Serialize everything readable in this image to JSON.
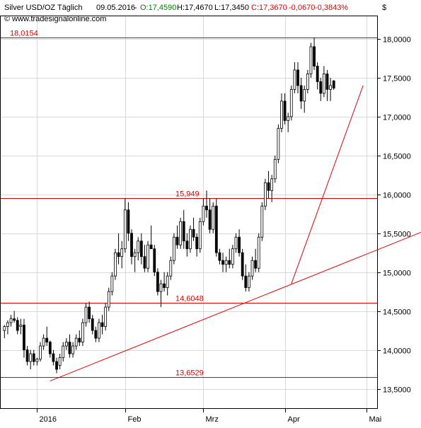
{
  "header": {
    "symbol": "Silver USD/OZ Täglich",
    "date": "09.05.2016",
    "open": "O:17,4590",
    "high": "H:17,4670",
    "low": "L:17,3450",
    "close": "C:17,3670",
    "change": "-0,0670",
    "change_pct": "-0,3843%",
    "currency": "$",
    "watermark": "© www.tradesignalonline.com"
  },
  "colors": {
    "background": "#ffffff",
    "up_candle": "#ffffff",
    "down_candle": "#000000",
    "lines": "#e00000",
    "grid": "#d9d9d9",
    "open_color": "#008000",
    "close_color": "#e00000"
  },
  "chart_data": {
    "type": "candlestick",
    "y_ticks": [
      "18,0000",
      "17,5000",
      "17,0000",
      "16,5000",
      "16,0000",
      "15,5000",
      "15,0000",
      "14,5000",
      "14,0000",
      "13,5000"
    ],
    "y_tick_values": [
      18.0,
      17.5,
      17.0,
      16.5,
      16.0,
      15.5,
      15.0,
      14.5,
      14.0,
      13.5
    ],
    "ylim": [
      13.25,
      18.3
    ],
    "x_ticks": [
      "2016",
      "Feb",
      "Mrz",
      "Apr",
      "Mai"
    ],
    "x_tick_bar_index": [
      10,
      37,
      61,
      86,
      111
    ],
    "horizontal_levels": [
      {
        "label": "18,0154",
        "value": 18.0154,
        "label_pos": "left"
      },
      {
        "label": "15,949",
        "value": 15.949,
        "label_pos": "center"
      },
      {
        "label": "14,6048",
        "value": 14.6048,
        "label_pos": "center"
      },
      {
        "label": "13,6529",
        "value": 13.6529,
        "label_pos": "center"
      }
    ],
    "trend_lines": [
      {
        "from": [
          14,
          13.6
        ],
        "to": [
          130,
          15.55
        ]
      },
      {
        "from": [
          88,
          14.85
        ],
        "to": [
          110,
          17.4
        ]
      }
    ],
    "candles": [
      [
        14.25,
        14.32,
        14.15,
        14.3
      ],
      [
        14.3,
        14.38,
        14.2,
        14.35
      ],
      [
        14.35,
        14.45,
        14.3,
        14.4
      ],
      [
        14.4,
        14.5,
        14.35,
        14.38
      ],
      [
        14.38,
        14.42,
        14.2,
        14.25
      ],
      [
        14.3,
        14.4,
        14.2,
        14.32
      ],
      [
        14.32,
        14.4,
        13.9,
        14.0
      ],
      [
        14.0,
        14.05,
        13.8,
        13.85
      ],
      [
        13.85,
        14.0,
        13.75,
        13.95
      ],
      [
        13.95,
        14.0,
        13.8,
        13.85
      ],
      [
        13.85,
        13.9,
        13.8,
        13.88
      ],
      [
        13.88,
        14.1,
        13.85,
        14.05
      ],
      [
        14.05,
        14.2,
        14.0,
        14.15
      ],
      [
        14.15,
        14.3,
        14.05,
        14.1
      ],
      [
        14.1,
        14.12,
        13.9,
        13.95
      ],
      [
        13.95,
        14.0,
        13.8,
        13.85
      ],
      [
        13.85,
        13.9,
        13.7,
        13.75
      ],
      [
        13.8,
        13.95,
        13.75,
        13.9
      ],
      [
        13.9,
        14.1,
        13.85,
        14.05
      ],
      [
        14.05,
        14.15,
        14.0,
        14.1
      ],
      [
        14.1,
        14.2,
        13.9,
        13.95
      ],
      [
        13.95,
        14.1,
        13.9,
        14.05
      ],
      [
        14.05,
        14.2,
        14.0,
        14.15
      ],
      [
        14.15,
        14.25,
        14.05,
        14.1
      ],
      [
        14.1,
        14.4,
        14.05,
        14.35
      ],
      [
        14.35,
        14.6,
        14.3,
        14.55
      ],
      [
        14.55,
        14.62,
        14.35,
        14.4
      ],
      [
        14.4,
        14.45,
        14.2,
        14.25
      ],
      [
        14.25,
        14.3,
        14.1,
        14.15
      ],
      [
        14.15,
        14.4,
        14.1,
        14.35
      ],
      [
        14.35,
        14.45,
        14.2,
        14.3
      ],
      [
        14.3,
        14.6,
        14.25,
        14.55
      ],
      [
        14.55,
        14.8,
        14.5,
        14.75
      ],
      [
        14.75,
        15.0,
        14.7,
        14.95
      ],
      [
        14.95,
        15.3,
        14.9,
        15.25
      ],
      [
        15.25,
        15.5,
        15.1,
        15.2
      ],
      [
        15.2,
        15.4,
        15.05,
        15.3
      ],
      [
        15.3,
        15.95,
        15.25,
        15.8
      ],
      [
        15.8,
        15.9,
        15.4,
        15.5
      ],
      [
        15.5,
        15.55,
        15.1,
        15.2
      ],
      [
        15.2,
        15.3,
        15.0,
        15.25
      ],
      [
        15.25,
        15.45,
        15.15,
        15.4
      ],
      [
        15.4,
        15.5,
        15.1,
        15.2
      ],
      [
        15.2,
        15.35,
        15.0,
        15.05
      ],
      [
        15.05,
        15.4,
        15.0,
        15.35
      ],
      [
        15.35,
        15.6,
        15.3,
        15.3
      ],
      [
        15.3,
        15.35,
        14.95,
        15.0
      ],
      [
        15.0,
        15.05,
        14.7,
        14.75
      ],
      [
        14.75,
        14.9,
        14.55,
        14.85
      ],
      [
        14.85,
        15.0,
        14.75,
        14.8
      ],
      [
        14.8,
        15.0,
        14.7,
        14.95
      ],
      [
        14.95,
        15.2,
        14.9,
        15.15
      ],
      [
        15.15,
        15.5,
        15.1,
        15.45
      ],
      [
        15.45,
        15.6,
        15.3,
        15.35
      ],
      [
        15.35,
        15.7,
        15.3,
        15.65
      ],
      [
        15.65,
        15.8,
        15.3,
        15.4
      ],
      [
        15.4,
        15.5,
        15.2,
        15.3
      ],
      [
        15.3,
        15.6,
        15.25,
        15.55
      ],
      [
        15.55,
        15.7,
        15.4,
        15.45
      ],
      [
        15.45,
        15.5,
        15.2,
        15.3
      ],
      [
        15.3,
        15.7,
        15.25,
        15.65
      ],
      [
        15.65,
        15.95,
        15.6,
        15.85
      ],
      [
        15.85,
        16.05,
        15.7,
        15.8
      ],
      [
        15.8,
        15.95,
        15.5,
        15.55
      ],
      [
        15.55,
        15.9,
        15.5,
        15.85
      ],
      [
        15.85,
        15.95,
        15.2,
        15.25
      ],
      [
        15.25,
        15.3,
        15.1,
        15.15
      ],
      [
        15.15,
        15.25,
        15.0,
        15.1
      ],
      [
        15.1,
        15.2,
        15.0,
        15.15
      ],
      [
        15.15,
        15.3,
        15.05,
        15.1
      ],
      [
        15.1,
        15.35,
        15.05,
        15.3
      ],
      [
        15.3,
        15.5,
        15.25,
        15.45
      ],
      [
        15.45,
        15.55,
        15.2,
        15.25
      ],
      [
        15.25,
        15.3,
        14.9,
        14.95
      ],
      [
        14.95,
        15.1,
        14.75,
        14.8
      ],
      [
        14.8,
        15.0,
        14.75,
        14.95
      ],
      [
        14.95,
        15.2,
        14.9,
        15.15
      ],
      [
        15.15,
        15.3,
        15.0,
        15.05
      ],
      [
        15.05,
        15.5,
        15.0,
        15.45
      ],
      [
        15.45,
        15.9,
        15.4,
        15.85
      ],
      [
        15.85,
        16.2,
        15.8,
        16.15
      ],
      [
        16.15,
        16.3,
        15.95,
        16.05
      ],
      [
        16.05,
        16.25,
        15.9,
        16.2
      ],
      [
        16.2,
        16.5,
        16.15,
        16.45
      ],
      [
        16.45,
        16.9,
        16.4,
        16.85
      ],
      [
        16.85,
        17.3,
        16.8,
        17.2
      ],
      [
        17.2,
        17.3,
        16.9,
        16.95
      ],
      [
        16.95,
        17.05,
        16.8,
        17.0
      ],
      [
        17.0,
        17.4,
        16.95,
        17.35
      ],
      [
        17.35,
        17.7,
        17.3,
        17.6
      ],
      [
        17.6,
        17.7,
        17.3,
        17.4
      ],
      [
        17.4,
        17.5,
        17.1,
        17.2
      ],
      [
        17.2,
        17.4,
        17.05,
        17.35
      ],
      [
        17.35,
        17.6,
        17.3,
        17.55
      ],
      [
        17.55,
        17.95,
        17.5,
        17.9
      ],
      [
        17.9,
        18.0154,
        17.6,
        17.65
      ],
      [
        17.65,
        17.7,
        17.35,
        17.45
      ],
      [
        17.45,
        17.5,
        17.2,
        17.3
      ],
      [
        17.3,
        17.65,
        17.25,
        17.55
      ],
      [
        17.55,
        17.6,
        17.2,
        17.35
      ],
      [
        17.35,
        17.5,
        17.2,
        17.4
      ],
      [
        17.46,
        17.47,
        17.345,
        17.367
      ]
    ]
  }
}
